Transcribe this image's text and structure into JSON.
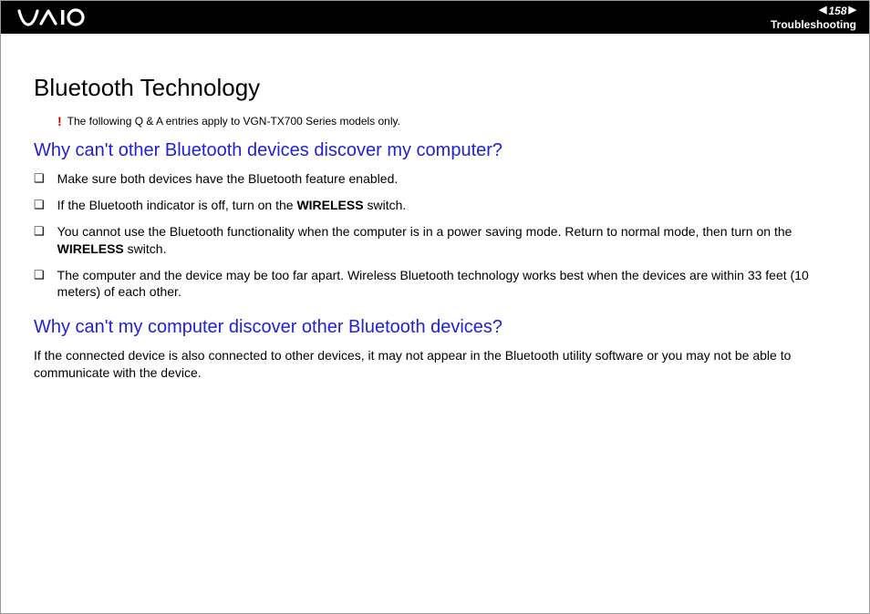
{
  "header": {
    "page_number": "158",
    "section": "Troubleshooting"
  },
  "content": {
    "title": "Bluetooth Technology",
    "note_mark": "!",
    "note_text": "The following Q & A entries apply to VGN-TX700 Series models only.",
    "q1": {
      "heading": "Why can't other Bluetooth devices discover my computer?",
      "bullets": [
        {
          "pre": "Make sure both devices have the Bluetooth feature enabled."
        },
        {
          "pre": "If the Bluetooth indicator is off, turn on the ",
          "bold": "WIRELESS",
          "post": " switch."
        },
        {
          "pre": "You cannot use the Bluetooth functionality when the computer is in a power saving mode. Return to normal mode, then turn on the ",
          "bold": "WIRELESS",
          "post": " switch."
        },
        {
          "pre": "The computer and the device may be too far apart. Wireless Bluetooth technology works best when the devices are within 33 feet (10 meters) of each other."
        }
      ]
    },
    "q2": {
      "heading": "Why can't my computer discover other Bluetooth devices?",
      "body": "If the connected device is also connected to other devices, it may not appear in the Bluetooth utility software or you may not be able to communicate with the device."
    }
  },
  "colors": {
    "header_bg": "#000000",
    "heading_blue": "#2121d6",
    "note_red": "#cc0000"
  }
}
